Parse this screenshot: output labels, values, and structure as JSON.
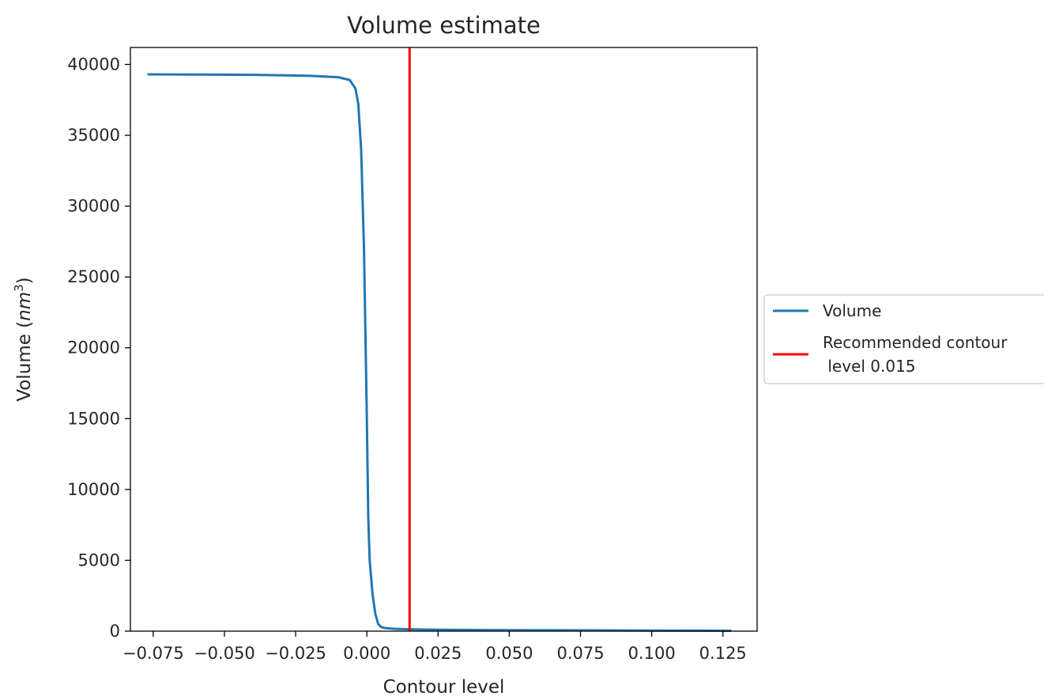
{
  "chart_data": {
    "type": "line",
    "title": "Volume estimate",
    "xlabel": "Contour level",
    "ylabel": "Volume (nm³)",
    "xlim": [
      -0.083,
      0.137
    ],
    "ylim": [
      0,
      41200
    ],
    "x_ticks": [
      -0.075,
      -0.05,
      -0.025,
      0.0,
      0.025,
      0.05,
      0.075,
      0.1,
      0.125
    ],
    "x_tick_labels": [
      "−0.075",
      "−0.050",
      "−0.025",
      "0.000",
      "0.025",
      "0.050",
      "0.075",
      "0.100",
      "0.125"
    ],
    "y_ticks": [
      0,
      5000,
      10000,
      15000,
      20000,
      25000,
      30000,
      35000,
      40000
    ],
    "y_tick_labels": [
      "0",
      "5000",
      "10000",
      "15000",
      "20000",
      "25000",
      "30000",
      "35000",
      "40000"
    ],
    "grid": false,
    "legend_placement": "outside-right",
    "series": [
      {
        "name": "Volume",
        "color": "#1f77b4",
        "x": [
          -0.077,
          -0.06,
          -0.04,
          -0.02,
          -0.01,
          -0.006,
          -0.004,
          -0.003,
          -0.002,
          -0.001,
          0.0,
          0.0005,
          0.001,
          0.0015,
          0.002,
          0.003,
          0.004,
          0.005,
          0.006,
          0.008,
          0.01,
          0.015,
          0.02,
          0.03,
          0.05,
          0.08,
          0.1,
          0.128
        ],
        "values": [
          39300,
          39290,
          39270,
          39200,
          39100,
          38900,
          38300,
          37200,
          34000,
          27000,
          15000,
          8000,
          5000,
          3800,
          2600,
          1200,
          500,
          300,
          230,
          190,
          160,
          130,
          110,
          90,
          70,
          55,
          45,
          30
        ]
      }
    ],
    "annotations": [
      {
        "type": "vline",
        "x": 0.015,
        "name": "Recommended contour\n level 0.015",
        "color": "#ff0000"
      }
    ]
  }
}
